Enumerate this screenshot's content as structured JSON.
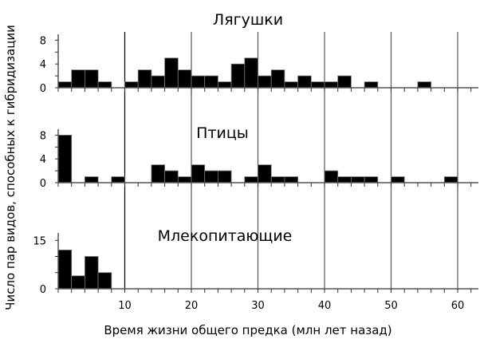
{
  "chart_data": {
    "type": "bar",
    "layout": "three stacked histogram panels sharing x axis",
    "xlabel": "Время жизни общего предка (млн лет назад)",
    "ylabel": "Число пар видов, способных к гибридизации",
    "x_ticks": [
      10,
      20,
      30,
      40,
      50,
      60
    ],
    "x_range": [
      0,
      63
    ],
    "bin_width": 2,
    "grid": {
      "vertical_lines_at": [
        10,
        20,
        30,
        40,
        50,
        60
      ],
      "horizontal": false
    },
    "bar_color": "#000000",
    "panels": [
      {
        "title": "Лягушки",
        "y_ticks": [
          0,
          4,
          8
        ],
        "y_minor_ticks": [
          2,
          6
        ],
        "ylim": [
          0,
          9
        ],
        "bins_start": [
          0,
          2,
          4,
          6,
          8,
          10,
          12,
          14,
          16,
          18,
          20,
          22,
          24,
          26,
          28,
          30,
          32,
          34,
          36,
          38,
          40,
          42,
          44,
          46,
          48,
          50,
          52,
          54,
          56,
          58,
          60
        ],
        "values": [
          1,
          3,
          3,
          1,
          0,
          1,
          3,
          2,
          5,
          3,
          2,
          2,
          1,
          4,
          5,
          2,
          3,
          1,
          2,
          1,
          1,
          2,
          0,
          1,
          0,
          0,
          0,
          1,
          0,
          0,
          0
        ]
      },
      {
        "title": "Птицы",
        "y_ticks": [
          0,
          4,
          8
        ],
        "y_minor_ticks": [
          2,
          6
        ],
        "ylim": [
          0,
          9
        ],
        "bins_start": [
          0,
          2,
          4,
          6,
          8,
          10,
          12,
          14,
          16,
          18,
          20,
          22,
          24,
          26,
          28,
          30,
          32,
          34,
          36,
          38,
          40,
          42,
          44,
          46,
          48,
          50,
          52,
          54,
          56,
          58,
          60
        ],
        "values": [
          8,
          0,
          1,
          0,
          1,
          0,
          0,
          3,
          2,
          1,
          3,
          2,
          2,
          0,
          1,
          3,
          1,
          1,
          0,
          0,
          2,
          1,
          1,
          1,
          0,
          1,
          0,
          0,
          0,
          1,
          0
        ]
      },
      {
        "title": "Млекопитающие",
        "y_ticks": [
          0,
          15
        ],
        "y_minor_ticks": [
          5,
          10
        ],
        "ylim": [
          0,
          17
        ],
        "bins_start": [
          0,
          2,
          4,
          6,
          8,
          10,
          12,
          14,
          16,
          18,
          20,
          22,
          24,
          26,
          28,
          30,
          32,
          34,
          36,
          38,
          40,
          42,
          44,
          46,
          48,
          50,
          52,
          54,
          56,
          58,
          60
        ],
        "values": [
          12,
          4,
          10,
          5,
          0,
          0,
          0,
          0,
          0,
          0,
          0,
          0,
          0,
          0,
          0,
          0,
          0,
          0,
          0,
          0,
          0,
          0,
          0,
          0,
          0,
          0,
          0,
          0,
          0,
          0,
          0
        ]
      }
    ]
  },
  "labels": {
    "panel_titles": [
      "Лягушки",
      "Птицы",
      "Млекопитающие"
    ],
    "xlabel": "Время жизни общего предка (млн лет назад)",
    "ylabel": "Число пар видов, способных к гибридизации"
  }
}
